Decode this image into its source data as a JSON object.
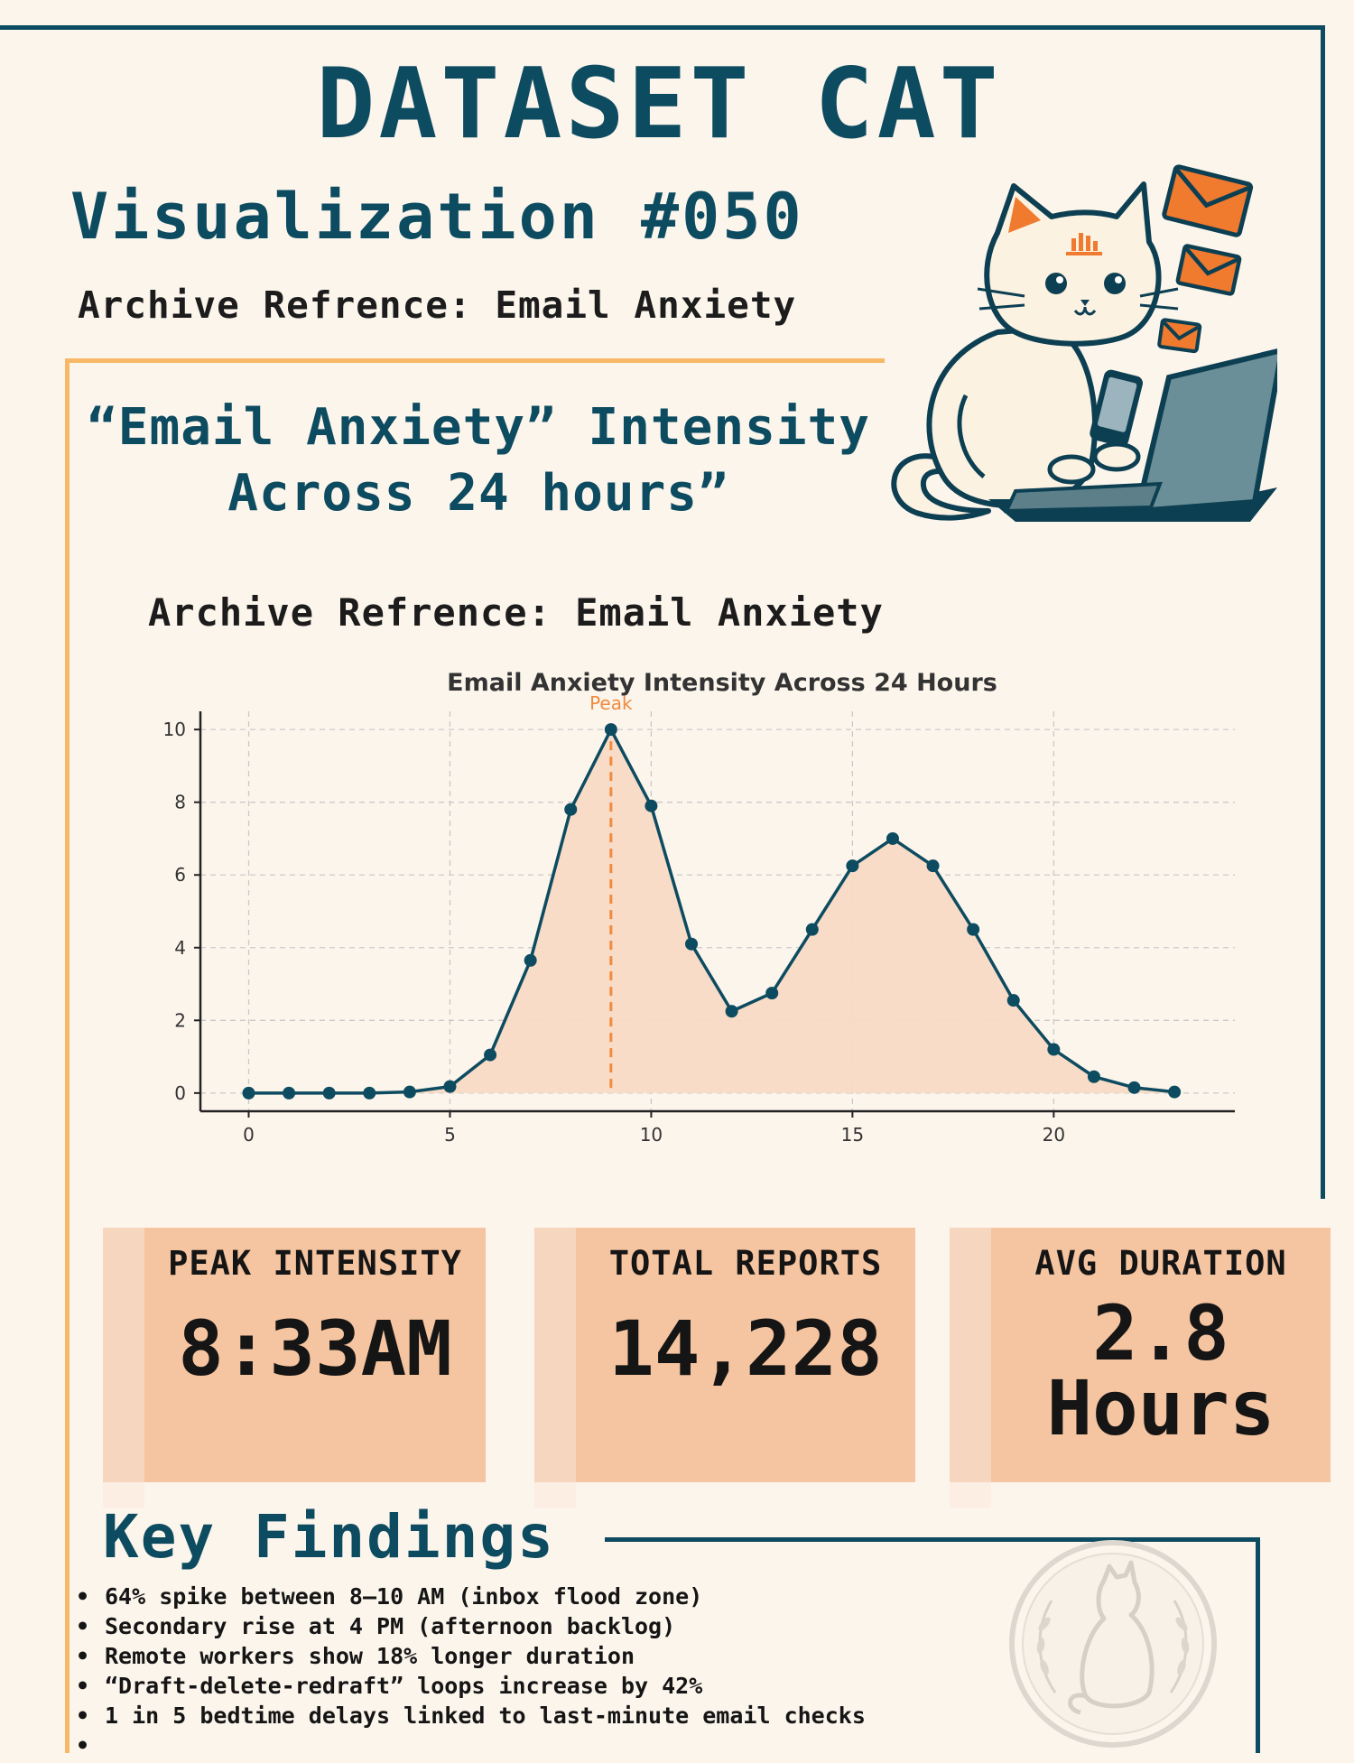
{
  "header": {
    "title": "DATASET CAT",
    "subtitle": "Visualization #050",
    "archive_reference": "Archive Refrence: Email Anxiety"
  },
  "panel": {
    "heading_line1": "“Email Anxiety” Intensity",
    "heading_line2": "Across 24 hours”",
    "archive_reference": "Archive Refrence: Email Anxiety"
  },
  "colors": {
    "navy": "#0d4b60",
    "orange": "#f08a3e",
    "gold": "#f7b867",
    "fill": "#f8dac5",
    "card": "#f5c4a0"
  },
  "illustration": {
    "cat_icon": "cat-with-laptop-icon",
    "envelope_icon": "envelope-icon",
    "seal_icon": "cat-seal-icon"
  },
  "chart_data": {
    "type": "area",
    "title": "Email Anxiety Intensity Across 24 Hours",
    "xlabel": "",
    "ylabel": "",
    "x": [
      0,
      1,
      2,
      3,
      4,
      5,
      6,
      7,
      8,
      9,
      10,
      11,
      12,
      13,
      14,
      15,
      16,
      17,
      18,
      19,
      20,
      21,
      22,
      23
    ],
    "series": [
      {
        "values": [
          0,
          0,
          0,
          0,
          0.03,
          0.18,
          1.05,
          3.65,
          7.8,
          10,
          7.9,
          4.1,
          2.25,
          2.75,
          4.5,
          6.25,
          7,
          6.25,
          4.5,
          2.55,
          1.2,
          0.45,
          0.15,
          0.03
        ]
      }
    ],
    "xlim": [
      -1.2,
      24.5
    ],
    "ylim": [
      -0.5,
      10.5
    ],
    "xticks": [
      0,
      5,
      10,
      15,
      20
    ],
    "yticks": [
      0,
      2,
      4,
      6,
      8,
      10
    ],
    "grid": true,
    "annotation": {
      "x": 9,
      "label": "Peak"
    }
  },
  "stats": [
    {
      "label": "PEAK INTENSITY",
      "value": "8:33AM"
    },
    {
      "label": "TOTAL REPORTS",
      "value": "14,228"
    },
    {
      "label": "AVG DURATION",
      "value": "2.8",
      "value2": "Hours"
    }
  ],
  "key_findings": {
    "title": "Key Findings",
    "items": [
      "64% spike between 8–10 AM (inbox flood zone)",
      "Secondary rise at 4 PM (afternoon backlog)",
      "Remote workers show 18% longer duration",
      "“Draft-delete-redraft” loops increase by 42%",
      "1 in 5 bedtime delays linked to last-minute email checks",
      ""
    ]
  }
}
